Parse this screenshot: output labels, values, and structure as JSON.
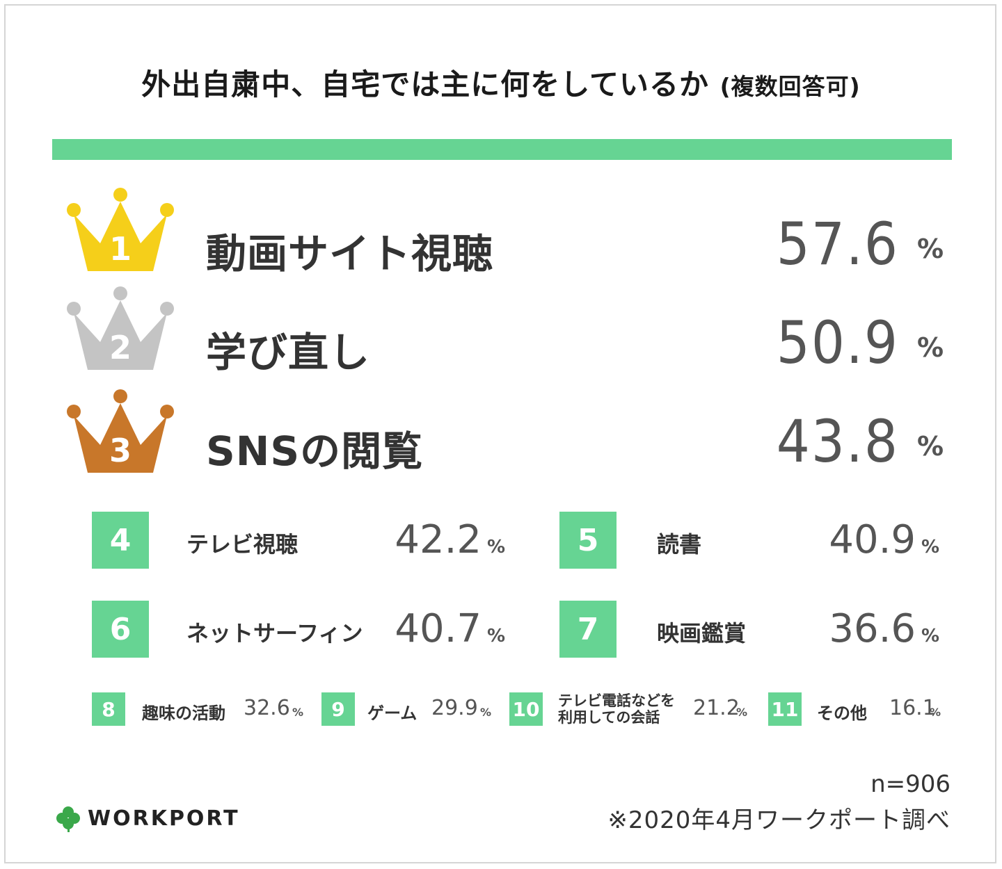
{
  "title": "外出自粛中、自宅では主に何をしているか",
  "subtitle": "(複数回答可)",
  "chart_data": {
    "type": "table",
    "unit": "%",
    "items": [
      {
        "rank": "1",
        "label": "動画サイト視聴",
        "value": 57.6
      },
      {
        "rank": "2",
        "label": "学び直し",
        "value": 50.9
      },
      {
        "rank": "3",
        "label": "SNSの閲覧",
        "value": 43.8
      },
      {
        "rank": "4",
        "label": "テレビ視聴",
        "value": 42.2
      },
      {
        "rank": "5",
        "label": "読書",
        "value": 40.9
      },
      {
        "rank": "6",
        "label": "ネットサーフィン",
        "value": 40.7
      },
      {
        "rank": "7",
        "label": "映画鑑賞",
        "value": 36.6
      },
      {
        "rank": "8",
        "label": "趣味の活動",
        "value": 32.6
      },
      {
        "rank": "9",
        "label": "ゲーム",
        "value": 29.9
      },
      {
        "rank": "10",
        "label": "テレビ電話などを利用しての会話",
        "value": 21.2
      },
      {
        "rank": "11",
        "label": "その他",
        "value": 16.1
      }
    ]
  },
  "ranks": {
    "r1": {
      "num": "1",
      "label": "動画サイト視聴",
      "value": "57.6",
      "pct": "%"
    },
    "r2": {
      "num": "2",
      "label": "学び直し",
      "value": "50.9",
      "pct": "%"
    },
    "r3": {
      "num": "3",
      "label": "SNSの閲覧",
      "value": "43.8",
      "pct": "%"
    },
    "r4": {
      "num": "4",
      "label": "テレビ視聴",
      "value": "42.2",
      "pct": "%"
    },
    "r5": {
      "num": "5",
      "label": "読書",
      "value": "40.9",
      "pct": "%"
    },
    "r6": {
      "num": "6",
      "label": "ネットサーフィン",
      "value": "40.7",
      "pct": "%"
    },
    "r7": {
      "num": "7",
      "label": "映画鑑賞",
      "value": "36.6",
      "pct": "%"
    },
    "r8": {
      "num": "8",
      "label": "趣味の活動",
      "value": "32.6",
      "pct": "%"
    },
    "r9": {
      "num": "9",
      "label": "ゲーム",
      "value": "29.9",
      "pct": "%"
    },
    "r10": {
      "num": "10",
      "label_line1": "テレビ電話などを",
      "label_line2": "利用しての会話",
      "value": "21.2",
      "pct": "%"
    },
    "r11": {
      "num": "11",
      "label": "その他",
      "value": "16.1",
      "pct": "%"
    }
  },
  "colors": {
    "accent": "#66d493",
    "gold": "#f5cf1a",
    "silver": "#c4c4c4",
    "bronze": "#c8772a",
    "logo_clover": "#3aa84a"
  },
  "footer": {
    "n": "n=906",
    "source": "※2020年4月ワークポート調べ",
    "logo": "WORKPORT"
  }
}
